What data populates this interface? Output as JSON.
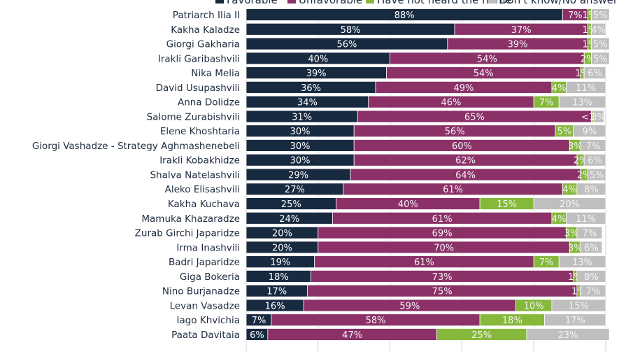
{
  "chart_data": {
    "type": "bar",
    "orientation": "horizontal",
    "stacked": true,
    "xlim": [
      0,
      100
    ],
    "categories": [
      "Patriarch Ilia II",
      "Kakha Kaladze",
      "Giorgi Gakharia",
      "Irakli Garibashvili",
      "Nika Melia",
      "David Usupashvili",
      "Anna Dolidze",
      "Salome Zurabishvili",
      "Elene Khoshtaria",
      "Giorgi Vashadze - Strategy Aghmashenebeli",
      "Irakli Kobakhidze",
      "Shalva Natelashvili",
      "Aleko Elisashvili",
      "Kakha Kuchava",
      "Mamuka Khazaradze",
      "Zurab Girchi Japaridze",
      "Irma Inashvili",
      "Badri Japaridze",
      "Giga Bokeria",
      "Nino Burjanadze",
      "Levan Vasadze",
      "Iago Khvichia",
      "Paata Davitaia"
    ],
    "series": [
      {
        "name": "Favorable",
        "color": "#172a40",
        "values": [
          88,
          58,
          56,
          40,
          39,
          36,
          34,
          31,
          30,
          30,
          30,
          29,
          27,
          25,
          24,
          20,
          20,
          19,
          18,
          17,
          16,
          7,
          6
        ],
        "labels": [
          "88%",
          "58%",
          "56%",
          "40%",
          "39%",
          "36%",
          "34%",
          "31%",
          "30%",
          "30%",
          "30%",
          "29%",
          "27%",
          "25%",
          "24%",
          "20%",
          "20%",
          "19%",
          "18%",
          "17%",
          "16%",
          "7%",
          "6%"
        ]
      },
      {
        "name": "Unfavorable",
        "color": "#8b3168",
        "values": [
          7,
          37,
          39,
          54,
          54,
          49,
          46,
          65,
          56,
          60,
          62,
          64,
          61,
          40,
          61,
          69,
          70,
          61,
          73,
          75,
          59,
          58,
          47
        ],
        "labels": [
          "7%",
          "37%",
          "39%",
          "54%",
          "54%",
          "49%",
          "46%",
          "65%",
          "56%",
          "60%",
          "62%",
          "64%",
          "61%",
          "40%",
          "61%",
          "69%",
          "70%",
          "61%",
          "73%",
          "75%",
          "59%",
          "58%",
          "47%"
        ]
      },
      {
        "name": "Have not heard the name",
        "color": "#86b83c",
        "values": [
          1,
          1,
          1,
          2,
          1,
          4,
          7,
          0.5,
          5,
          3,
          2,
          2,
          4,
          15,
          4,
          3,
          3,
          7,
          1,
          1,
          10,
          18,
          25
        ],
        "labels": [
          "1%",
          "1%",
          "1%",
          "2%",
          "1%",
          "4%",
          "7%",
          "<1%",
          "5%",
          "3%",
          "2%",
          "2%",
          "4%",
          "15%",
          "4%",
          "3%",
          "3%",
          "7%",
          "1%",
          "1%",
          "10%",
          "18%",
          "25%"
        ]
      },
      {
        "name": "Don't know/No answer",
        "color": "#bfbfbf",
        "values": [
          5,
          4,
          5,
          5,
          6,
          11,
          13,
          3,
          9,
          7,
          6,
          5,
          8,
          20,
          11,
          7,
          6,
          13,
          8,
          7,
          15,
          17,
          23
        ],
        "labels": [
          "5%",
          "4%",
          "5%",
          "5%",
          "6%",
          "11%",
          "13%",
          "3%",
          "9%",
          "7%",
          "6%",
          "5%",
          "8%",
          "20%",
          "11%",
          "7%",
          "6%",
          "13%",
          "8%",
          "7%",
          "15%",
          "17%",
          "23%"
        ]
      }
    ]
  }
}
